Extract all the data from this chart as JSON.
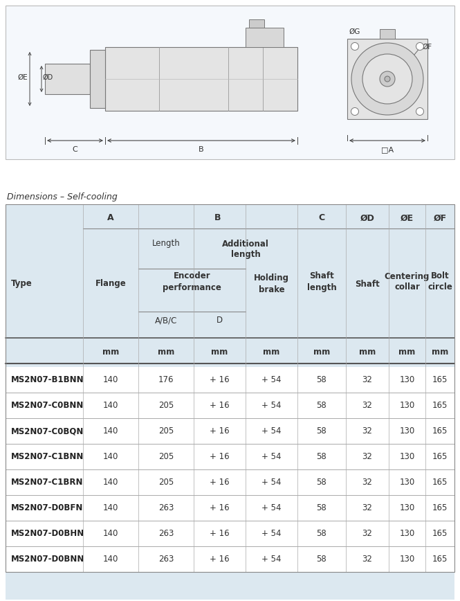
{
  "title": "Dimensions – Self-cooling",
  "rows": [
    [
      "MS2N07-B1BNN",
      "140",
      "176",
      "+ 16",
      "+ 54",
      "58",
      "32",
      "130",
      "165"
    ],
    [
      "MS2N07-C0BNN",
      "140",
      "205",
      "+ 16",
      "+ 54",
      "58",
      "32",
      "130",
      "165"
    ],
    [
      "MS2N07-C0BQN",
      "140",
      "205",
      "+ 16",
      "+ 54",
      "58",
      "32",
      "130",
      "165"
    ],
    [
      "MS2N07-C1BNN",
      "140",
      "205",
      "+ 16",
      "+ 54",
      "58",
      "32",
      "130",
      "165"
    ],
    [
      "MS2N07-C1BRN",
      "140",
      "205",
      "+ 16",
      "+ 54",
      "58",
      "32",
      "130",
      "165"
    ],
    [
      "MS2N07-D0BFN",
      "140",
      "263",
      "+ 16",
      "+ 54",
      "58",
      "32",
      "130",
      "165"
    ],
    [
      "MS2N07-D0BHN",
      "140",
      "263",
      "+ 16",
      "+ 54",
      "58",
      "32",
      "130",
      "165"
    ],
    [
      "MS2N07-D0BNN",
      "140",
      "263",
      "+ 16",
      "+ 54",
      "58",
      "32",
      "130",
      "165"
    ]
  ],
  "table_bg": "#dce8f0",
  "white_bg": "#ffffff",
  "text_dark": "#333333",
  "line_dark": "#555555",
  "line_mid": "#888888",
  "line_light": "#aaaaaa"
}
